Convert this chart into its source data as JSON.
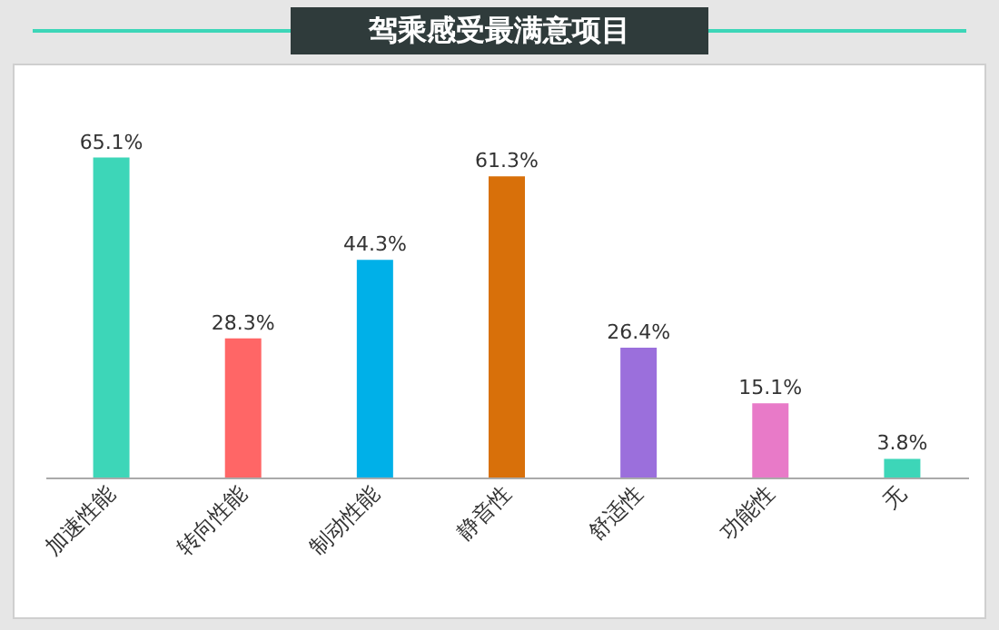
{
  "chart_data": {
    "type": "bar",
    "title": "驾乘感受最满意项目",
    "categories": [
      "加速性能",
      "转向性能",
      "制动性能",
      "静音性",
      "舒适性",
      "功能性",
      "无"
    ],
    "values": [
      65.1,
      28.3,
      44.3,
      61.3,
      26.4,
      15.1,
      3.8
    ],
    "colors": [
      "#3dd6b8",
      "#ff6666",
      "#00b0e8",
      "#d8700a",
      "#9b6fdc",
      "#e87ac8",
      "#3dd6b8"
    ],
    "value_labels": [
      "65.1%",
      "28.3%",
      "44.3%",
      "61.3%",
      "26.4%",
      "15.1%",
      "3.8%"
    ],
    "data_labels": true
  }
}
